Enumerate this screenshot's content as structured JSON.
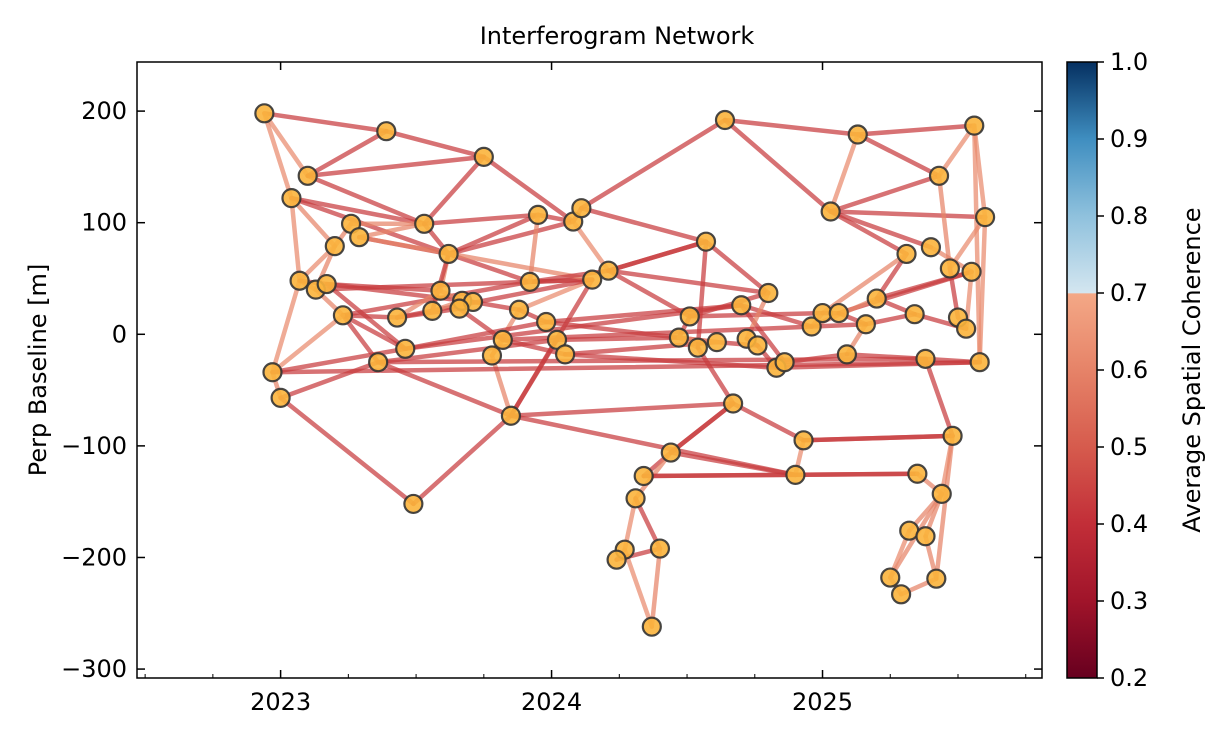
{
  "chart_data": {
    "type": "network",
    "title": "Interferogram Network",
    "xlabel": "",
    "ylabel": "Perp Baseline [m]",
    "xlim": [
      2022.47,
      2025.81
    ],
    "ylim": [
      -308,
      244
    ],
    "xticks": [
      {
        "value": 2023,
        "label": "2023"
      },
      {
        "value": 2024,
        "label": "2024"
      },
      {
        "value": 2025,
        "label": "2025"
      }
    ],
    "yticks": [
      {
        "value": 200,
        "label": "200"
      },
      {
        "value": 100,
        "label": "100"
      },
      {
        "value": 0,
        "label": "0"
      },
      {
        "value": -100,
        "label": "−100"
      },
      {
        "value": -200,
        "label": "−200"
      },
      {
        "value": -300,
        "label": "−300"
      }
    ],
    "colorbar": {
      "label": "Average Spatial Coherence",
      "range": [
        0.2,
        1.0
      ],
      "colormap": "RdBu",
      "ticks": [
        "0.2",
        "0.3",
        "0.4",
        "0.5",
        "0.6",
        "0.7",
        "0.8",
        "0.9",
        "1.0"
      ],
      "stops": [
        {
          "v": 0.2,
          "c": "#67001f"
        },
        {
          "v": 0.3,
          "c": "#a0142a"
        },
        {
          "v": 0.4,
          "c": "#c22e38"
        },
        {
          "v": 0.5,
          "c": "#d65b4d"
        },
        {
          "v": 0.6,
          "c": "#e68368"
        },
        {
          "v": 0.699,
          "c": "#f4a886"
        },
        {
          "v": 0.7,
          "c": "#d4e6f0"
        },
        {
          "v": 0.8,
          "c": "#8fc1dd"
        },
        {
          "v": 0.9,
          "c": "#3f8ec0"
        },
        {
          "v": 1.0,
          "c": "#053061"
        }
      ]
    },
    "node_color": "#fbb43c",
    "node_edge_color": "#333333",
    "nodes": [
      [
        2022.94,
        198
      ],
      [
        2023.39,
        182
      ],
      [
        2023.75,
        159
      ],
      [
        2023.1,
        142
      ],
      [
        2023.04,
        122
      ],
      [
        2023.53,
        99
      ],
      [
        2023.26,
        99
      ],
      [
        2023.29,
        87
      ],
      [
        2023.2,
        79
      ],
      [
        2023.62,
        72
      ],
      [
        2023.07,
        48
      ],
      [
        2023.13,
        40
      ],
      [
        2023.17,
        45
      ],
      [
        2023.59,
        39
      ],
      [
        2023.67,
        30
      ],
      [
        2023.71,
        29
      ],
      [
        2023.66,
        23
      ],
      [
        2023.56,
        21
      ],
      [
        2023.23,
        17
      ],
      [
        2023.43,
        15
      ],
      [
        2023.46,
        -13
      ],
      [
        2023.36,
        -25
      ],
      [
        2022.97,
        -34
      ],
      [
        2023.0,
        -57
      ],
      [
        2023.49,
        -152
      ],
      [
        2023.85,
        -73
      ],
      [
        2023.78,
        -19
      ],
      [
        2023.82,
        -5
      ],
      [
        2023.88,
        22
      ],
      [
        2023.92,
        47
      ],
      [
        2023.95,
        107
      ],
      [
        2024.08,
        101
      ],
      [
        2024.11,
        113
      ],
      [
        2023.98,
        11
      ],
      [
        2024.02,
        -5
      ],
      [
        2024.05,
        -18
      ],
      [
        2024.15,
        49
      ],
      [
        2024.21,
        57
      ],
      [
        2024.51,
        16
      ],
      [
        2024.47,
        -3
      ],
      [
        2024.54,
        -12
      ],
      [
        2024.61,
        -7
      ],
      [
        2024.57,
        83
      ],
      [
        2024.64,
        192
      ],
      [
        2024.7,
        26
      ],
      [
        2024.8,
        37
      ],
      [
        2024.67,
        -62
      ],
      [
        2024.72,
        -4
      ],
      [
        2024.76,
        -10
      ],
      [
        2024.83,
        -30
      ],
      [
        2024.86,
        -25
      ],
      [
        2024.96,
        7
      ],
      [
        2025.0,
        19
      ],
      [
        2025.06,
        19
      ],
      [
        2025.16,
        9
      ],
      [
        2025.09,
        -18
      ],
      [
        2024.93,
        -95
      ],
      [
        2024.9,
        -126
      ],
      [
        2024.44,
        -106
      ],
      [
        2024.34,
        -127
      ],
      [
        2024.31,
        -147
      ],
      [
        2024.27,
        -193
      ],
      [
        2024.24,
        -202
      ],
      [
        2024.4,
        -192
      ],
      [
        2024.37,
        -262
      ],
      [
        2025.13,
        179
      ],
      [
        2025.03,
        110
      ],
      [
        2025.2,
        32
      ],
      [
        2025.34,
        18
      ],
      [
        2025.31,
        72
      ],
      [
        2025.4,
        78
      ],
      [
        2025.43,
        142
      ],
      [
        2025.56,
        187
      ],
      [
        2025.6,
        105
      ],
      [
        2025.47,
        59
      ],
      [
        2025.55,
        56
      ],
      [
        2025.5,
        15
      ],
      [
        2025.53,
        5
      ],
      [
        2025.38,
        -22
      ],
      [
        2025.58,
        -25
      ],
      [
        2025.48,
        -91
      ],
      [
        2025.35,
        -125
      ],
      [
        2025.44,
        -143
      ],
      [
        2025.32,
        -176
      ],
      [
        2025.38,
        -181
      ],
      [
        2025.25,
        -218
      ],
      [
        2025.29,
        -233
      ],
      [
        2025.42,
        -219
      ]
    ],
    "edges": [
      [
        1,
        2,
        0.43
      ],
      [
        1,
        4,
        0.62
      ],
      [
        1,
        5,
        0.62
      ],
      [
        2,
        4,
        0.43
      ],
      [
        2,
        3,
        0.43
      ],
      [
        4,
        3,
        0.43
      ],
      [
        4,
        6,
        0.43
      ],
      [
        3,
        6,
        0.43
      ],
      [
        3,
        32,
        0.43
      ],
      [
        5,
        11,
        0.62
      ],
      [
        5,
        10,
        0.43
      ],
      [
        5,
        9,
        0.6
      ],
      [
        5,
        6,
        0.43
      ],
      [
        6,
        7,
        0.6
      ],
      [
        6,
        8,
        0.6
      ],
      [
        6,
        31,
        0.43
      ],
      [
        6,
        10,
        0.43
      ],
      [
        7,
        9,
        0.6
      ],
      [
        8,
        10,
        0.43
      ],
      [
        9,
        11,
        0.62
      ],
      [
        9,
        12,
        0.6
      ],
      [
        10,
        31,
        0.43
      ],
      [
        10,
        30,
        0.43
      ],
      [
        10,
        14,
        0.6
      ],
      [
        10,
        18,
        0.43
      ],
      [
        10,
        32,
        0.43
      ],
      [
        11,
        12,
        0.6
      ],
      [
        11,
        23,
        0.62
      ],
      [
        12,
        37,
        0.43
      ],
      [
        13,
        14,
        0.43
      ],
      [
        11,
        16,
        0.43
      ],
      [
        19,
        20,
        0.43
      ],
      [
        19,
        12,
        0.6
      ],
      [
        19,
        22,
        0.43
      ],
      [
        19,
        21,
        0.43
      ],
      [
        19,
        30,
        0.43
      ],
      [
        20,
        14,
        0.6
      ],
      [
        20,
        17,
        0.43
      ],
      [
        23,
        24,
        0.6
      ],
      [
        23,
        21,
        0.43
      ],
      [
        23,
        19,
        0.62
      ],
      [
        24,
        22,
        0.43
      ],
      [
        24,
        25,
        0.43
      ],
      [
        25,
        26,
        0.43
      ],
      [
        22,
        26,
        0.43
      ],
      [
        26,
        27,
        0.6
      ],
      [
        26,
        37,
        0.43
      ],
      [
        26,
        47,
        0.43
      ],
      [
        26,
        58,
        0.43
      ],
      [
        27,
        29,
        0.62
      ],
      [
        27,
        28,
        0.6
      ],
      [
        28,
        36,
        0.43
      ],
      [
        21,
        45,
        0.43
      ],
      [
        21,
        34,
        0.43
      ],
      [
        22,
        35,
        0.43
      ],
      [
        31,
        32,
        0.43
      ],
      [
        32,
        33,
        0.43
      ],
      [
        33,
        43,
        0.43
      ],
      [
        32,
        38,
        0.62
      ],
      [
        38,
        43,
        0.43
      ],
      [
        37,
        29,
        0.62
      ],
      [
        37,
        30,
        0.43
      ],
      [
        38,
        46,
        0.43
      ],
      [
        38,
        39,
        0.43
      ],
      [
        34,
        45,
        0.43
      ],
      [
        35,
        40,
        0.43
      ],
      [
        36,
        42,
        0.43
      ],
      [
        39,
        46,
        0.43
      ],
      [
        39,
        40,
        0.43
      ],
      [
        39,
        53,
        0.43
      ],
      [
        40,
        41,
        0.6
      ],
      [
        41,
        47,
        0.43
      ],
      [
        41,
        43,
        0.43
      ],
      [
        43,
        46,
        0.43
      ],
      [
        44,
        33,
        0.43
      ],
      [
        44,
        67,
        0.43
      ],
      [
        44,
        66,
        0.43
      ],
      [
        66,
        73,
        0.43
      ],
      [
        66,
        72,
        0.43
      ],
      [
        67,
        66,
        0.62
      ],
      [
        67,
        72,
        0.43
      ],
      [
        67,
        74,
        0.43
      ],
      [
        67,
        71,
        0.43
      ],
      [
        67,
        70,
        0.43
      ],
      [
        73,
        72,
        0.62
      ],
      [
        73,
        74,
        0.62
      ],
      [
        73,
        80,
        0.62
      ],
      [
        74,
        75,
        0.62
      ],
      [
        70,
        68,
        0.43
      ],
      [
        70,
        53,
        0.6
      ],
      [
        71,
        76,
        0.6
      ],
      [
        75,
        77,
        0.43
      ],
      [
        76,
        54,
        0.43
      ],
      [
        68,
        69,
        0.43
      ],
      [
        69,
        78,
        0.43
      ],
      [
        68,
        52,
        0.6
      ],
      [
        55,
        56,
        0.6
      ],
      [
        56,
        79,
        0.43
      ],
      [
        56,
        51,
        0.43
      ],
      [
        79,
        80,
        0.43
      ],
      [
        50,
        80,
        0.43
      ],
      [
        79,
        81,
        0.43
      ],
      [
        81,
        57,
        0.43
      ],
      [
        81,
        83,
        0.62
      ],
      [
        57,
        58,
        0.62
      ],
      [
        57,
        47,
        0.43
      ],
      [
        58,
        82,
        0.43
      ],
      [
        58,
        59,
        0.43
      ],
      [
        59,
        47,
        0.43
      ],
      [
        59,
        60,
        0.43
      ],
      [
        59,
        61,
        0.6
      ],
      [
        60,
        82,
        0.43
      ],
      [
        60,
        58,
        0.43
      ],
      [
        61,
        62,
        0.62
      ],
      [
        61,
        64,
        0.43
      ],
      [
        62,
        63,
        0.6
      ],
      [
        62,
        65,
        0.62
      ],
      [
        63,
        64,
        0.43
      ],
      [
        64,
        65,
        0.6
      ],
      [
        82,
        83,
        0.6
      ],
      [
        83,
        84,
        0.6
      ],
      [
        83,
        86,
        0.6
      ],
      [
        83,
        85,
        0.6
      ],
      [
        84,
        86,
        0.62
      ],
      [
        85,
        88,
        0.6
      ],
      [
        86,
        87,
        0.62
      ],
      [
        87,
        88,
        0.6
      ],
      [
        81,
        88,
        0.6
      ],
      [
        49,
        50,
        0.43
      ],
      [
        52,
        53,
        0.6
      ],
      [
        53,
        54,
        0.43
      ],
      [
        54,
        55,
        0.43
      ],
      [
        55,
        69,
        0.43
      ],
      [
        68,
        76,
        0.43
      ],
      [
        45,
        51,
        0.43
      ],
      [
        45,
        52,
        0.43
      ],
      [
        36,
        50,
        0.43
      ],
      [
        34,
        42,
        0.43
      ],
      [
        42,
        49,
        0.43
      ],
      [
        48,
        49,
        0.43
      ],
      [
        46,
        48,
        0.6
      ],
      [
        47,
        59,
        0.43
      ],
      [
        29,
        34,
        0.43
      ],
      [
        14,
        15,
        0.6
      ],
      [
        15,
        16,
        0.6
      ],
      [
        16,
        29,
        0.43
      ],
      [
        17,
        28,
        0.43
      ],
      [
        12,
        13,
        0.6
      ],
      [
        8,
        37,
        0.6
      ],
      [
        43,
        38,
        0.43
      ],
      [
        30,
        38,
        0.43
      ],
      [
        76,
        78,
        0.62
      ],
      [
        74,
        80,
        0.62
      ],
      [
        77,
        78,
        0.6
      ],
      [
        57,
        81,
        0.43
      ],
      [
        13,
        21,
        0.43
      ],
      [
        20,
        37,
        0.43
      ],
      [
        18,
        15,
        0.6
      ],
      [
        23,
        80,
        0.43
      ],
      [
        22,
        79,
        0.43
      ],
      [
        28,
        55,
        0.43
      ],
      [
        40,
        42,
        0.6
      ],
      [
        30,
        31,
        0.6
      ],
      [
        26,
        35,
        0.43
      ],
      [
        72,
        75,
        0.6
      ]
    ]
  }
}
